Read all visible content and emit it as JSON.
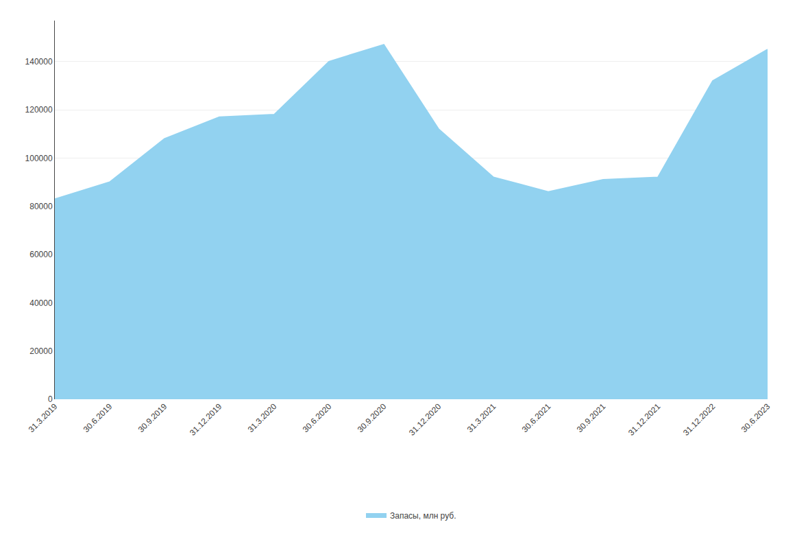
{
  "chart_data": {
    "type": "area",
    "categories": [
      "31.3.2019",
      "30.6.2019",
      "30.9.2019",
      "31.12.2019",
      "31.3.2020",
      "30.6.2020",
      "30.9.2020",
      "31.12.2020",
      "31.3.2021",
      "30.6.2021",
      "30.9.2021",
      "31.12.2021",
      "31.12.2022",
      "30.6.2023"
    ],
    "series": [
      {
        "name": "Запасы, млн руб.",
        "color": "#92D2F0",
        "values": [
          83000,
          90000,
          108000,
          117000,
          118000,
          140000,
          147000,
          112000,
          92000,
          86000,
          91000,
          92000,
          132000,
          145000
        ]
      }
    ],
    "ylim": [
      0,
      157000
    ],
    "yticks": [
      0,
      20000,
      40000,
      60000,
      80000,
      100000,
      120000,
      140000
    ],
    "grid": true,
    "legend": "bottom"
  }
}
